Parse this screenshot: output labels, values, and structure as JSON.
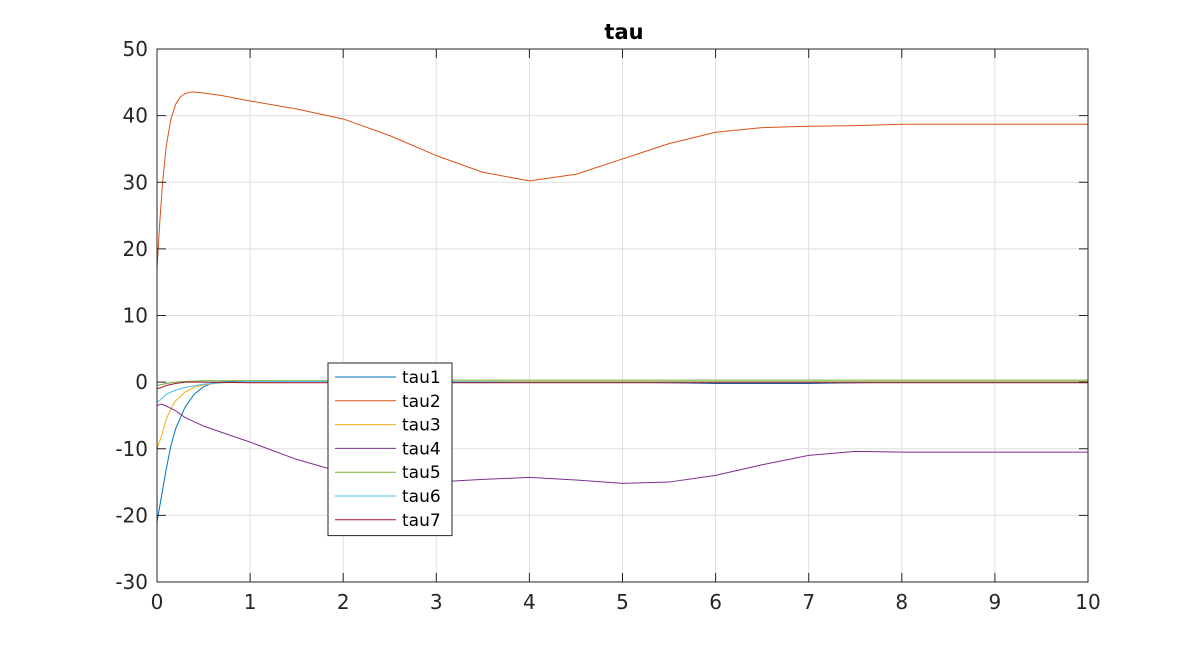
{
  "chart_data": {
    "type": "line",
    "title": "tau",
    "xlabel": "",
    "ylabel": "",
    "xlim": [
      0,
      10
    ],
    "ylim": [
      -30,
      50
    ],
    "xticks": [
      "0",
      "1",
      "2",
      "3",
      "4",
      "5",
      "6",
      "7",
      "8",
      "9",
      "10"
    ],
    "yticks": [
      "-30",
      "-20",
      "-10",
      "0",
      "10",
      "20",
      "30",
      "40",
      "50"
    ],
    "grid": true,
    "legend_position": "inside, lower-left",
    "series": [
      {
        "name": "tau1",
        "color": "#0072BD",
        "x": [
          0,
          0.05,
          0.1,
          0.15,
          0.2,
          0.3,
          0.4,
          0.5,
          0.6,
          0.8,
          1,
          1.5,
          2,
          2.5,
          3,
          3.5,
          4,
          4.5,
          5,
          5.5,
          6,
          6.5,
          7,
          7.5,
          8,
          9,
          10
        ],
        "y": [
          -21,
          -17,
          -13,
          -9.5,
          -7,
          -3.8,
          -1.8,
          -0.7,
          -0.1,
          0.1,
          0.1,
          0.1,
          0.1,
          0.1,
          0,
          0,
          0,
          0,
          0,
          -0.1,
          -0.2,
          -0.2,
          -0.2,
          -0.1,
          0,
          0,
          0
        ]
      },
      {
        "name": "tau2",
        "color": "#D95319",
        "x": [
          0,
          0.03,
          0.06,
          0.1,
          0.15,
          0.2,
          0.25,
          0.3,
          0.35,
          0.4,
          0.5,
          0.7,
          1,
          1.5,
          2,
          2.5,
          3,
          3.5,
          4,
          4.5,
          5,
          5.5,
          6,
          6.5,
          7,
          7.5,
          8,
          9,
          10
        ],
        "y": [
          17,
          24,
          30,
          35.5,
          39.5,
          41.7,
          42.8,
          43.3,
          43.5,
          43.55,
          43.4,
          43,
          42.2,
          41,
          39.5,
          37,
          34,
          31.5,
          30.2,
          31.2,
          33.5,
          35.8,
          37.5,
          38.2,
          38.4,
          38.5,
          38.7,
          38.7,
          38.7
        ]
      },
      {
        "name": "tau3",
        "color": "#EDB120",
        "x": [
          0,
          0.05,
          0.1,
          0.15,
          0.2,
          0.3,
          0.4,
          0.5,
          0.7,
          1,
          1.5,
          2,
          3,
          4,
          5,
          6,
          7,
          8,
          9,
          10
        ],
        "y": [
          -10,
          -8,
          -5.5,
          -4,
          -2.8,
          -1.5,
          -0.8,
          -0.4,
          -0.1,
          0,
          0.1,
          0.1,
          0.1,
          0.1,
          0.1,
          0.1,
          0.1,
          0.1,
          0.1,
          0.1
        ]
      },
      {
        "name": "tau4",
        "color": "#7E2F8E",
        "x": [
          0,
          0.05,
          0.1,
          0.2,
          0.3,
          0.5,
          1,
          1.5,
          2,
          2.5,
          3,
          3.5,
          4,
          4.5,
          5,
          5.5,
          6,
          6.5,
          7,
          7.5,
          8,
          8.5,
          9,
          10
        ],
        "y": [
          -3.5,
          -3.3,
          -3.6,
          -4.3,
          -5.3,
          -6.6,
          -9,
          -11.6,
          -13.6,
          -14.8,
          -15,
          -14.6,
          -14.3,
          -14.7,
          -15.2,
          -15,
          -14,
          -12.4,
          -11,
          -10.4,
          -10.5,
          -10.5,
          -10.5,
          -10.5
        ]
      },
      {
        "name": "tau5",
        "color": "#77AC30",
        "x": [
          0,
          0.1,
          0.2,
          0.3,
          0.5,
          1,
          2,
          3,
          4,
          5,
          6,
          7,
          8,
          9,
          10
        ],
        "y": [
          -0.5,
          -0.2,
          0,
          0.1,
          0.2,
          0.2,
          0.2,
          0.3,
          0.3,
          0.3,
          0.3,
          0.3,
          0.3,
          0.3,
          0.3
        ]
      },
      {
        "name": "tau6",
        "color": "#4DBEEE",
        "x": [
          0,
          0.05,
          0.1,
          0.2,
          0.3,
          0.5,
          0.8,
          1,
          2,
          3,
          4,
          5,
          6,
          7,
          8,
          10
        ],
        "y": [
          -3,
          -2.5,
          -1.8,
          -1.2,
          -0.8,
          -0.3,
          0,
          0.1,
          0.1,
          0.1,
          0,
          0,
          0,
          0,
          0,
          0
        ]
      },
      {
        "name": "tau7",
        "color": "#A2142F",
        "x": [
          0,
          0.05,
          0.1,
          0.2,
          0.3,
          0.5,
          1,
          2,
          3,
          4,
          5,
          6,
          7,
          8,
          10
        ],
        "y": [
          -1,
          -0.8,
          -0.5,
          -0.2,
          0,
          0,
          -0.1,
          -0.1,
          -0.1,
          -0.1,
          -0.1,
          -0.1,
          -0.1,
          -0.1,
          -0.1
        ]
      }
    ]
  }
}
